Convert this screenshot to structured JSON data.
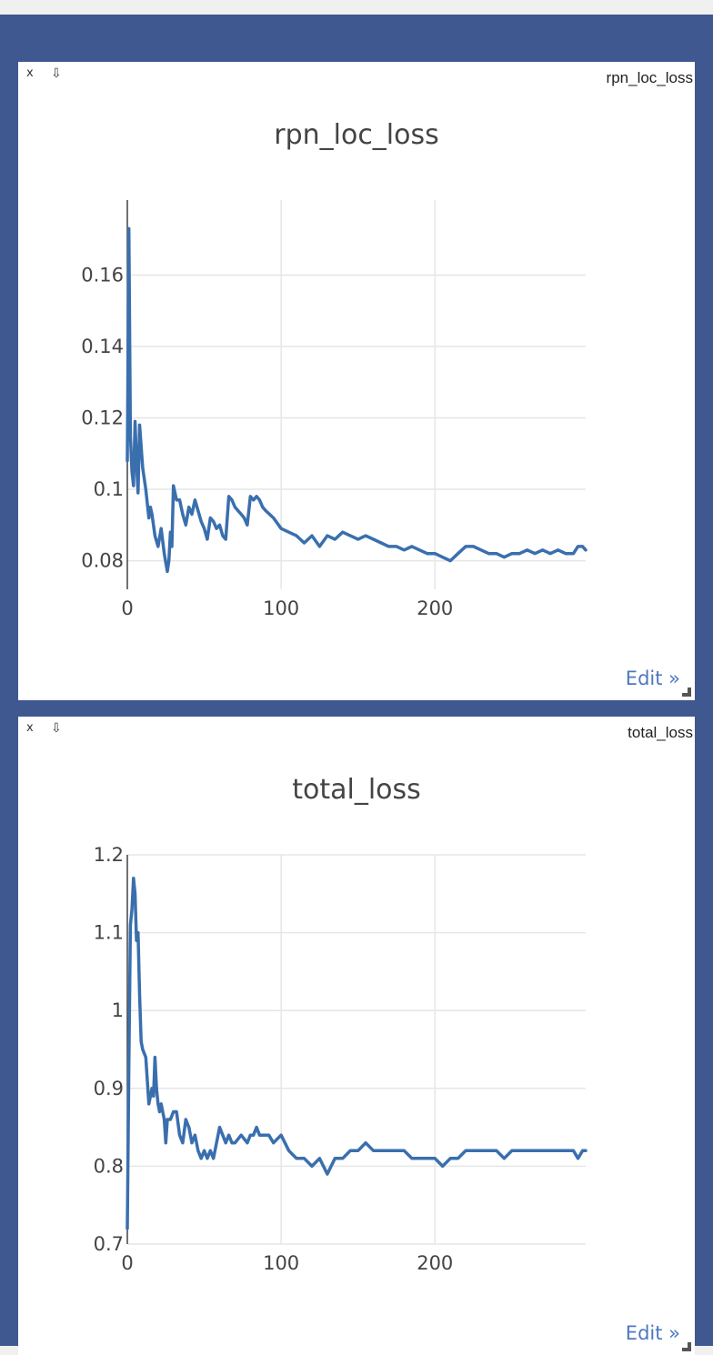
{
  "panes": [
    {
      "name": "rpn_loc_loss",
      "close_label": "x",
      "download_icon": "download-icon",
      "edit_label": "Edit »",
      "chart_data": {
        "type": "line",
        "title": "rpn_loc_loss",
        "xlabel": "",
        "ylabel": "",
        "xlim": [
          0,
          298
        ],
        "ylim": [
          0.072,
          0.181
        ],
        "x_ticks": [
          0,
          100,
          200
        ],
        "y_ticks": [
          0.08,
          0.1,
          0.12,
          0.14,
          0.16
        ],
        "y_tick_labels": [
          "0.08",
          "0.1",
          "0.12",
          "0.14",
          "0.16"
        ],
        "grid": true,
        "series_color": "#3a6fae",
        "series": [
          {
            "x": [
              0,
              1,
              2,
              3,
              4,
              5,
              6,
              7,
              8,
              9,
              10,
              11,
              12,
              13,
              14,
              15,
              16,
              18,
              20,
              22,
              24,
              26,
              27,
              28,
              29,
              30,
              32,
              34,
              36,
              38,
              40,
              42,
              44,
              46,
              48,
              50,
              52,
              54,
              56,
              58,
              60,
              62,
              64,
              66,
              68,
              70,
              72,
              74,
              76,
              78,
              80,
              82,
              84,
              86,
              88,
              90,
              95,
              100,
              105,
              110,
              115,
              120,
              125,
              130,
              135,
              140,
              145,
              150,
              155,
              160,
              165,
              170,
              175,
              180,
              185,
              190,
              195,
              200,
              205,
              210,
              215,
              220,
              225,
              230,
              235,
              240,
              245,
              250,
              255,
              260,
              265,
              270,
              275,
              280,
              285,
              290,
              293,
              296,
              298
            ],
            "y": [
              0.108,
              0.173,
              0.115,
              0.105,
              0.101,
              0.119,
              0.108,
              0.099,
              0.118,
              0.112,
              0.106,
              0.103,
              0.1,
              0.096,
              0.092,
              0.095,
              0.093,
              0.087,
              0.084,
              0.089,
              0.082,
              0.077,
              0.08,
              0.088,
              0.084,
              0.101,
              0.097,
              0.097,
              0.093,
              0.09,
              0.095,
              0.093,
              0.097,
              0.094,
              0.091,
              0.089,
              0.086,
              0.092,
              0.091,
              0.089,
              0.09,
              0.087,
              0.086,
              0.098,
              0.097,
              0.095,
              0.094,
              0.093,
              0.092,
              0.09,
              0.098,
              0.097,
              0.098,
              0.097,
              0.095,
              0.094,
              0.092,
              0.089,
              0.088,
              0.087,
              0.085,
              0.087,
              0.084,
              0.087,
              0.086,
              0.088,
              0.087,
              0.086,
              0.087,
              0.086,
              0.085,
              0.084,
              0.084,
              0.083,
              0.084,
              0.083,
              0.082,
              0.082,
              0.081,
              0.08,
              0.082,
              0.084,
              0.084,
              0.083,
              0.082,
              0.082,
              0.081,
              0.082,
              0.082,
              0.083,
              0.082,
              0.083,
              0.082,
              0.083,
              0.082,
              0.082,
              0.084,
              0.084,
              0.083
            ]
          }
        ]
      }
    },
    {
      "name": "total_loss",
      "close_label": "x",
      "download_icon": "download-icon",
      "edit_label": "Edit »",
      "chart_data": {
        "type": "line",
        "title": "total_loss",
        "xlabel": "",
        "ylabel": "",
        "xlim": [
          0,
          298
        ],
        "ylim": [
          0.7,
          1.2
        ],
        "x_ticks": [
          0,
          100,
          200
        ],
        "y_ticks": [
          0.7,
          0.8,
          0.9,
          1,
          1.1,
          1.2
        ],
        "y_tick_labels": [
          "0.7",
          "0.8",
          "0.9",
          "1",
          "1.1",
          "1.2"
        ],
        "grid": true,
        "series_color": "#3a6fae",
        "series": [
          {
            "x": [
              0,
              1,
              2,
              3,
              4,
              5,
              6,
              7,
              8,
              9,
              10,
              12,
              14,
              16,
              17,
              18,
              19,
              20,
              21,
              22,
              24,
              25,
              26,
              27,
              28,
              30,
              32,
              34,
              36,
              38,
              40,
              42,
              44,
              46,
              48,
              50,
              52,
              54,
              56,
              58,
              60,
              62,
              64,
              66,
              68,
              70,
              74,
              78,
              80,
              82,
              84,
              86,
              88,
              90,
              92,
              95,
              100,
              105,
              110,
              115,
              120,
              125,
              130,
              135,
              140,
              145,
              150,
              155,
              160,
              165,
              170,
              175,
              180,
              185,
              190,
              195,
              200,
              205,
              210,
              215,
              220,
              225,
              230,
              235,
              240,
              245,
              250,
              255,
              260,
              265,
              270,
              275,
              280,
              285,
              290,
              293,
              296,
              298
            ],
            "y": [
              0.72,
              0.93,
              1.11,
              1.13,
              1.17,
              1.15,
              1.09,
              1.1,
              1.02,
              0.96,
              0.95,
              0.94,
              0.88,
              0.9,
              0.89,
              0.94,
              0.9,
              0.88,
              0.87,
              0.88,
              0.86,
              0.83,
              0.86,
              0.86,
              0.86,
              0.87,
              0.87,
              0.84,
              0.83,
              0.86,
              0.85,
              0.83,
              0.84,
              0.82,
              0.81,
              0.82,
              0.81,
              0.82,
              0.81,
              0.83,
              0.85,
              0.84,
              0.83,
              0.84,
              0.83,
              0.83,
              0.84,
              0.83,
              0.84,
              0.84,
              0.85,
              0.84,
              0.84,
              0.84,
              0.84,
              0.83,
              0.84,
              0.82,
              0.81,
              0.81,
              0.8,
              0.81,
              0.79,
              0.81,
              0.81,
              0.82,
              0.82,
              0.83,
              0.82,
              0.82,
              0.82,
              0.82,
              0.82,
              0.81,
              0.81,
              0.81,
              0.81,
              0.8,
              0.81,
              0.81,
              0.82,
              0.82,
              0.82,
              0.82,
              0.82,
              0.81,
              0.82,
              0.82,
              0.82,
              0.82,
              0.82,
              0.82,
              0.82,
              0.82,
              0.82,
              0.81,
              0.82,
              0.82
            ]
          }
        ]
      }
    }
  ]
}
